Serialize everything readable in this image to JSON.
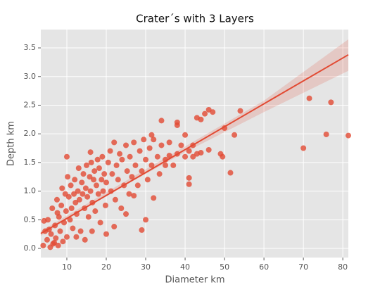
{
  "chart_data": {
    "type": "scatter",
    "title": "Crater´s with 3 Layers",
    "x_label": "Diameter km",
    "y_label": "Depth km",
    "color": "#e24a33",
    "grid": true,
    "xlim": [
      3.4,
      81.4
    ],
    "ylim": [
      -0.16,
      3.82
    ],
    "xticks": [
      10,
      20,
      30,
      40,
      50,
      60,
      70,
      80
    ],
    "yticks": [
      {
        "value": 0,
        "label": "0.0"
      },
      0.5,
      {
        "value": 1,
        "label": "1.0"
      },
      1.5,
      {
        "value": 2,
        "label": "2.0"
      },
      2.5,
      {
        "value": 3,
        "label": "3.0"
      },
      3.5
    ],
    "x": [
      70,
      71.5,
      75.8,
      77,
      81.4,
      51.5,
      54,
      52.5,
      50,
      49,
      49.5,
      47,
      46,
      45,
      44,
      46,
      44,
      41,
      41,
      42,
      43,
      40,
      38,
      38,
      34,
      31.5,
      36,
      35,
      32,
      30,
      29,
      27,
      22,
      25,
      10,
      16,
      20,
      4,
      4.5,
      5,
      5.2,
      5.8,
      6,
      6.3,
      6.8,
      7,
      7.2,
      7.5,
      7.8,
      8,
      8.3,
      8.6,
      9,
      9.3,
      9.6,
      9.8,
      10,
      4.2,
      5.5,
      6.5,
      8.8,
      7.6,
      10.5,
      10.8,
      11,
      11.2,
      11.5,
      11.8,
      12,
      12.2,
      12.5,
      12.8,
      13,
      13.2,
      13.5,
      13.8,
      14,
      14.2,
      14.5,
      14.8,
      15,
      15.2,
      15.5,
      15.8,
      16,
      16.2,
      16.5,
      16.8,
      17,
      17.2,
      17.5,
      17.8,
      18,
      18.2,
      18.5,
      18.8,
      19,
      19.2,
      19.5,
      19.8,
      20,
      12.4,
      14.6,
      10.2,
      16.4,
      20.5,
      21,
      21.2,
      21.5,
      22,
      22.3,
      22.6,
      23,
      23.4,
      23.8,
      24,
      24.5,
      25,
      25.3,
      25.8,
      26,
      26.5,
      27,
      27.4,
      28,
      28.5,
      29,
      29.5,
      30,
      30.5,
      31,
      31.5,
      32,
      33,
      33.5,
      34,
      35,
      36,
      37,
      38,
      39,
      40,
      41,
      42,
      43
    ],
    "values": [
      1.75,
      2.62,
      1.99,
      2.55,
      1.97,
      1.32,
      2.4,
      1.98,
      2.1,
      1.65,
      1.6,
      2.38,
      2.42,
      2.35,
      2.25,
      1.72,
      1.67,
      1.23,
      1.12,
      1.8,
      2.28,
      1.98,
      2.2,
      2.15,
      2.23,
      1.98,
      1.62,
      1.45,
      0.88,
      0.5,
      0.32,
      0.92,
      0.38,
      0.6,
      1.6,
      1.68,
      0.25,
      0.05,
      0.3,
      0.15,
      0.5,
      0.02,
      0.25,
      0.7,
      0.1,
      0.4,
      0.18,
      0.85,
      0.05,
      0.55,
      0.3,
      0.75,
      0.12,
      0.45,
      0.95,
      0.65,
      0.2,
      0.48,
      0.33,
      0.08,
      1.05,
      0.62,
      0.9,
      0.5,
      1.1,
      0.7,
      0.35,
      0.95,
      1.2,
      0.8,
      0.6,
      1.0,
      1.4,
      0.85,
      0.3,
      1.15,
      0.95,
      1.3,
      0.7,
      1.05,
      1.45,
      0.9,
      0.55,
      1.25,
      1.0,
      1.5,
      0.8,
      1.2,
      1.35,
      0.65,
      1.1,
      1.55,
      0.95,
      1.4,
      0.45,
      1.2,
      1.6,
      1.0,
      1.3,
      0.75,
      1.15,
      0.2,
      0.15,
      1.25,
      0.3,
      1.5,
      1.7,
      1.0,
      1.3,
      1.85,
      0.85,
      1.45,
      1.2,
      1.65,
      0.7,
      1.55,
      1.1,
      1.8,
      1.35,
      0.95,
      1.6,
      1.25,
      1.85,
      1.45,
      1.1,
      1.7,
      1.35,
      1.9,
      1.55,
      1.2,
      1.75,
      1.45,
      1.9,
      1.6,
      1.3,
      1.8,
      1.55,
      1.85,
      1.45,
      1.65,
      1.8,
      1.6,
      1.7,
      1.6,
      1.65
    ],
    "regression": {
      "x": [
        3.4,
        81.4
      ],
      "values": [
        0.26,
        3.38
      ]
    },
    "ci": {
      "x": [
        3.4,
        20,
        40,
        60,
        81.4
      ],
      "lower": [
        0.22,
        0.92,
        1.68,
        2.38,
        3.1
      ],
      "upper": [
        0.3,
        0.98,
        1.78,
        2.58,
        3.65
      ]
    }
  }
}
